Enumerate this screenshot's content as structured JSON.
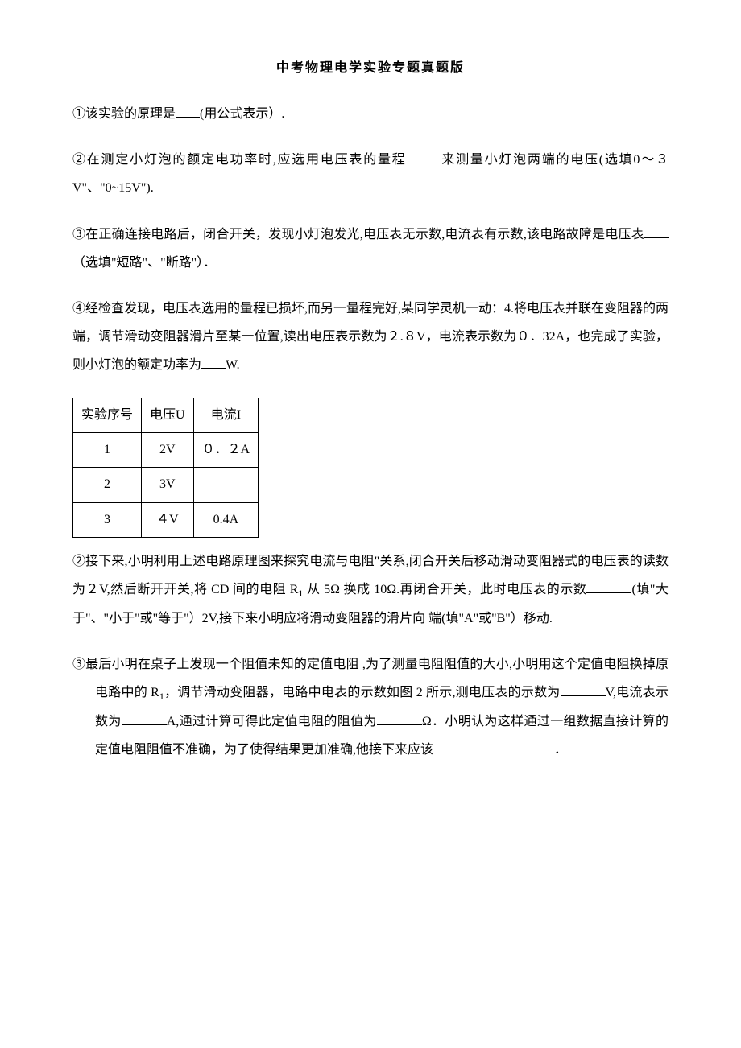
{
  "title": "中考物理电学实验专题真题版",
  "q1": "①该实验的原理是",
  "q1_suffix": "(用公式表示）.",
  "q2": "②在测定小灯泡的额定电功率时,应选用电压表的量程",
  "q2_suffix": "来测量小灯泡两端的电压(选填0～３V\"、\"0~15V\").",
  "q3_a": "③在正确连接电路后，闭合开关，发现小灯泡发光,电压表无示数,电流表有示数,该电路故障是电压表",
  "q3_b": "（选填\"短路\"、\"断路\"）．",
  "q4": "④经检查发现，电压表选用的量程已损坏,而另一量程完好,某同学灵机一动：4.将电压表并联在变阻器的两端，调节滑动变阻器滑片至某一位置,读出电压表示数为２.８V，电流表示数为０．32A，也完成了实验，则小灯泡的额定功率为",
  "q4_suffix": "W.",
  "table": {
    "header": [
      "实验序号",
      "电压U",
      "电流I"
    ],
    "rows": [
      [
        "1",
        "2V",
        "０．２A"
      ],
      [
        "2",
        "3V",
        ""
      ],
      [
        "3",
        "４V",
        "0.4A"
      ]
    ],
    "border_color": "#000000",
    "background_color": "#ffffff",
    "text_color": "#000000",
    "fontsize": 16
  },
  "q5_a": "②接下来,小明利用上述电路原理图来探究电流与电阻\"关系,闭合开关后移动滑动变阻器式的电压表的读数为２V,然后断开开关,将 CD 间的电阻 R",
  "q5_sub": "1",
  "q5_b": " 从 5Ω 换成 10Ω.再闭合开关，此时电压表的示数",
  "q5_c": "(填\"大于\"、\"小于\"或\"等于\"）2V,接下来小明应将滑动变阻器的滑片向 端(填\"A\"或\"B\"）移动.",
  "q6_a": "③最后小明在桌子上发现一个阻值未知的定值电阻 ,为了测量电阻阻值的大小,小明用这个定值电阻换掉原电路中的 R",
  "q6_sub": "1",
  "q6_b": "，调节滑动变阻器，电路中电表的示数如图 2 所示,测电压表的示数为",
  "q6_c": "V,电流表示数为",
  "q6_d": "A,通过计算可得此定值电阻的阻值为",
  "q6_e": "Ω．小明认为这样通过一组数据直接计算的定值电阻阻值不准确，为了使得结果更加准确,他接下来应该",
  "q6_f": "．",
  "colors": {
    "background": "#ffffff",
    "text": "#000000",
    "border": "#000000"
  },
  "typography": {
    "font_family": "SimSun",
    "body_fontsize": 16,
    "title_fontsize": 16,
    "line_height": 2.2
  }
}
